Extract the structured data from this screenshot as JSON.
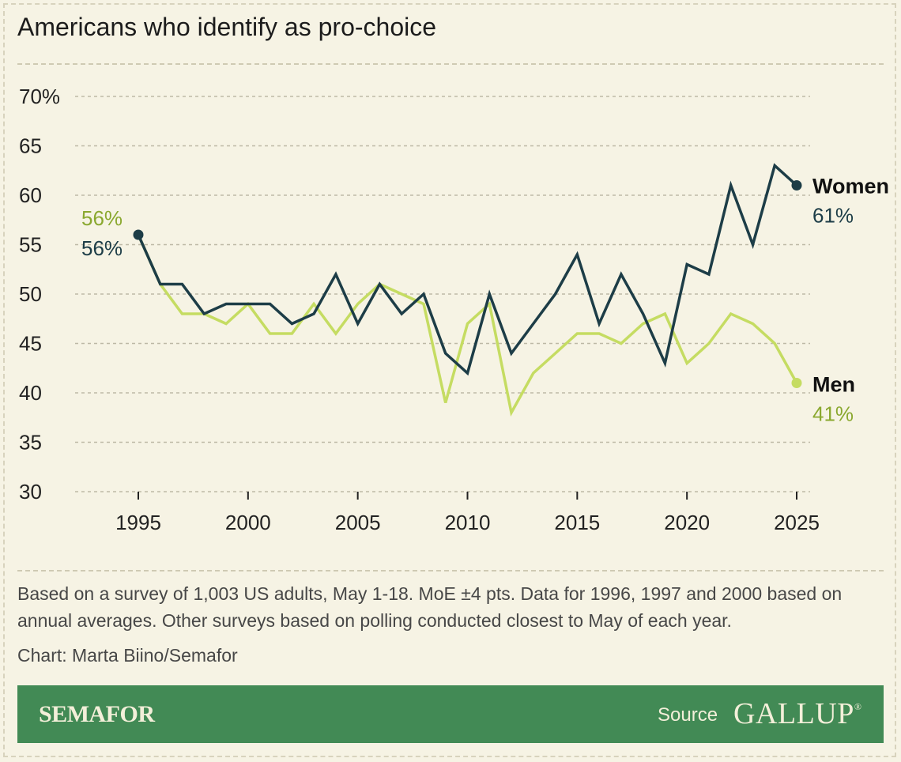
{
  "title": "Americans who identify as pro-choice",
  "note": "Based on a survey of 1,003 US adults, May 1-18. MoE ±4 pts. Data for 1996, 1997 and 2000 based on annual averages. Other surveys based on polling conducted closest to May of each year.",
  "credit": "Chart: Marta Biino/Semafor",
  "footer": {
    "brand": "SEMAFOR",
    "source_label": "Source",
    "source_name": "GALLUP",
    "source_mark": "®"
  },
  "colors": {
    "women": "#1d3d47",
    "men": "#c5dc62",
    "men_text": "#8aa82f",
    "footer": "#428a55",
    "background": "#f6f3e4"
  },
  "chart_data": {
    "type": "line",
    "title": "Americans who identify as pro-choice",
    "xlabel": "",
    "ylabel": "",
    "xlim": [
      1995,
      2025
    ],
    "ylim": [
      30,
      70
    ],
    "y_ticks": [
      30,
      35,
      40,
      45,
      50,
      55,
      60,
      65,
      70
    ],
    "y_tick_labels": [
      "30",
      "35",
      "40",
      "45",
      "50",
      "55",
      "60",
      "65",
      "70%"
    ],
    "x_ticks": [
      1995,
      2000,
      2005,
      2010,
      2015,
      2020,
      2025
    ],
    "x_tick_labels": [
      "1995",
      "2000",
      "2005",
      "2010",
      "2015",
      "2020",
      "2025"
    ],
    "grid": "horizontal dashed",
    "x": [
      1995,
      1996,
      1997,
      1998,
      1999,
      2000,
      2001,
      2002,
      2003,
      2004,
      2005,
      2006,
      2007,
      2008,
      2009,
      2010,
      2011,
      2012,
      2013,
      2014,
      2015,
      2016,
      2017,
      2018,
      2019,
      2020,
      2021,
      2022,
      2023,
      2024,
      2025
    ],
    "series": [
      {
        "name": "Women",
        "label": "Women",
        "start_label": "56%",
        "end_label": "61%",
        "values": [
          56,
          51,
          51,
          48,
          49,
          49,
          49,
          47,
          48,
          52,
          47,
          51,
          48,
          50,
          44,
          42,
          50,
          44,
          47,
          50,
          54,
          47,
          52,
          48,
          43,
          53,
          52,
          61,
          55,
          63,
          61
        ]
      },
      {
        "name": "Men",
        "label": "Men",
        "start_label": "56%",
        "end_label": "41%",
        "values": [
          56,
          51,
          48,
          48,
          47,
          49,
          46,
          46,
          49,
          46,
          49,
          51,
          50,
          49,
          39,
          47,
          49,
          38,
          42,
          44,
          46,
          46,
          45,
          47,
          48,
          43,
          45,
          48,
          47,
          45,
          41
        ]
      }
    ]
  }
}
